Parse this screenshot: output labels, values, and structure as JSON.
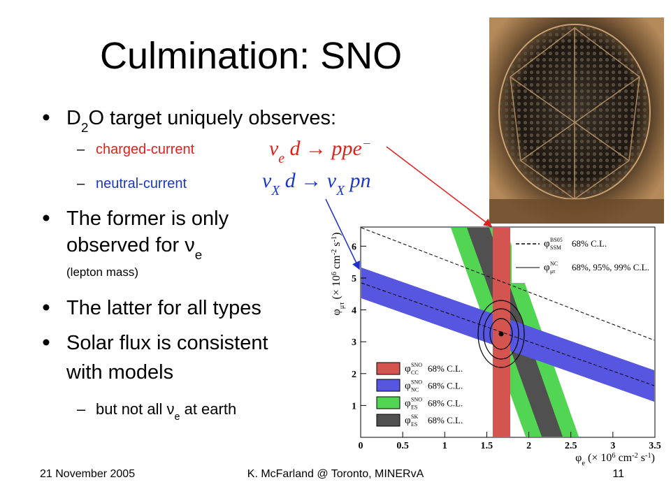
{
  "title": "Culmination: SNO",
  "bullets": [
    {
      "lines": [
        [
          {
            "text": "D"
          },
          {
            "text": "2",
            "pos": "sub"
          },
          {
            "text": "O target uniquely observes:"
          }
        ]
      ],
      "sub": [
        {
          "lines": [
            [
              {
                "text": "charged-current"
              }
            ]
          ]
        },
        {
          "lines": [
            [
              {
                "text": "neutral-current"
              }
            ]
          ]
        }
      ]
    },
    {
      "lines": [
        [
          {
            "text": "The former is only"
          }
        ],
        [
          {
            "text": "observed for "
          },
          {
            "text": "ν"
          },
          {
            "text": "e",
            "pos": "sub"
          }
        ]
      ],
      "note": "(lepton mass)"
    },
    {
      "lines": [
        [
          {
            "text": "The latter for all types"
          }
        ]
      ]
    },
    {
      "lines": [
        [
          {
            "text": "Solar flux is consistent"
          }
        ],
        [
          {
            "text": "with models"
          }
        ]
      ],
      "sub": [
        {
          "lines": [
            [
              {
                "text": "but not all "
              },
              {
                "text": "ν"
              },
              {
                "text": "e",
                "pos": "sub"
              },
              {
                "text": " at earth"
              }
            ]
          ]
        }
      ]
    }
  ],
  "equations": [
    [
      {
        "text": "ν"
      },
      {
        "text": "e",
        "pos": "sub"
      },
      {
        "text": " d → ppe"
      },
      {
        "text": "−",
        "pos": "super"
      }
    ],
    [
      {
        "text": "ν"
      },
      {
        "text": "X",
        "pos": "sub"
      },
      {
        "text": " d → ν"
      },
      {
        "text": "X",
        "pos": "sub"
      },
      {
        "text": " pn"
      }
    ]
  ],
  "plot": {
    "x_label": [
      {
        "text": "φ"
      },
      {
        "text": "e",
        "pos": "sub"
      },
      {
        "text": " (× 10"
      },
      {
        "text": "6",
        "pos": "super"
      },
      {
        "text": " cm"
      },
      {
        "text": "-2",
        "pos": "super"
      },
      {
        "text": " s"
      },
      {
        "text": "-1",
        "pos": "super"
      },
      {
        "text": ")"
      }
    ],
    "y_label": [
      {
        "text": "φ"
      },
      {
        "text": "μτ",
        "pos": "sub"
      },
      {
        "text": " (× 10"
      },
      {
        "text": "6",
        "pos": "super"
      },
      {
        "text": " cm"
      },
      {
        "text": "-2",
        "pos": "super"
      },
      {
        "text": " s"
      },
      {
        "text": "-1",
        "pos": "super"
      },
      {
        "text": ")"
      }
    ],
    "xlim": [
      0,
      3.5
    ],
    "xticks": [
      0,
      0.5,
      1,
      1.5,
      2,
      2.5,
      3,
      3.5
    ],
    "ylim": [
      0,
      6.6
    ],
    "yticks": [
      1,
      2,
      3,
      4,
      5,
      6
    ],
    "top_legend": [
      {
        "symbol": "φ",
        "sup": "BS05",
        "sub": "SSM",
        "text": "68% C.L."
      },
      {
        "symbol": "φ",
        "sup": "NC",
        "sub": "μτ",
        "text": "68%, 95%, 99% C.L."
      }
    ],
    "legend": [
      {
        "symbol": "φ",
        "sup": "SNO",
        "sub": "CC",
        "text": "68% C.L."
      },
      {
        "symbol": "φ",
        "sup": "SNO",
        "sub": "NC",
        "text": "68% C.L."
      },
      {
        "symbol": "φ",
        "sup": "SNO",
        "sub": "ES",
        "text": "68% C.L."
      },
      {
        "symbol": "φ",
        "sup": "SK",
        "sub": "ES",
        "text": "68% C.L."
      }
    ]
  },
  "footer": {
    "date": "21 November 2005",
    "author": "K. McFarland @ Toronto, MINERvA",
    "page": "11"
  }
}
